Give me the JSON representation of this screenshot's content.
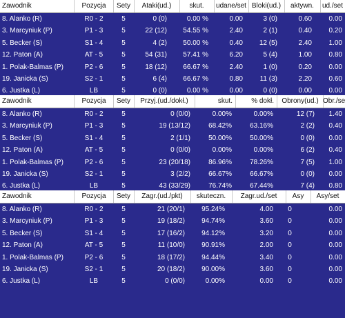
{
  "table1": {
    "headers": [
      "Zawodnik",
      "Pozycja",
      "Sety",
      "Ataki(ud.)",
      "skut.",
      "udane/set",
      "Bloki(ud.)",
      "aktywn.",
      "ud./set"
    ],
    "rows": [
      [
        "8. Alanko (R)",
        "R0 - 2",
        "5",
        "0 (0)",
        "0.00 %",
        "0.00",
        "3 (0)",
        "0.60",
        "0.00"
      ],
      [
        "3. Marcyniuk (P)",
        "P1 - 3",
        "5",
        "22 (12)",
        "54.55 %",
        "2.40",
        "2 (1)",
        "0.40",
        "0.20"
      ],
      [
        "5. Becker (S)",
        "S1 - 4",
        "5",
        "4 (2)",
        "50.00 %",
        "0.40",
        "12 (5)",
        "2.40",
        "1.00"
      ],
      [
        "12. Paton (A)",
        "AT - 5",
        "5",
        "54 (31)",
        "57.41 %",
        "6.20",
        "5 (4)",
        "1.00",
        "0.80"
      ],
      [
        "1. Polak-Balmas (P)",
        "P2 - 6",
        "5",
        "18 (12)",
        "66.67 %",
        "2.40",
        "1 (0)",
        "0.20",
        "0.00"
      ],
      [
        "19. Janicka (S)",
        "S2 - 1",
        "5",
        "6 (4)",
        "66.67 %",
        "0.80",
        "11 (3)",
        "2.20",
        "0.60"
      ],
      [
        "6. Justka (L)",
        "LB",
        "5",
        "0 (0)",
        "0.00 %",
        "0.00",
        "0 (0)",
        "0.00",
        "0.00"
      ]
    ]
  },
  "table2": {
    "headers": [
      "Zawodnik",
      "Pozycja",
      "Sety",
      "Przyj.(ud./dokł.)",
      "skut.",
      "% dokł.",
      "Obrony(ud.)",
      "Obr./set"
    ],
    "rows": [
      [
        "8. Alanko (R)",
        "R0 - 2",
        "5",
        "0 (0/0)",
        "0.00%",
        "0.00%",
        "12 (7)",
        "1.40"
      ],
      [
        "3. Marcyniuk (P)",
        "P1 - 3",
        "5",
        "19 (13/12)",
        "68.42%",
        "63.16%",
        "2 (2)",
        "0.40"
      ],
      [
        "5. Becker (S)",
        "S1 - 4",
        "5",
        "2 (1/1)",
        "50.00%",
        "50.00%",
        "0 (0)",
        "0.00"
      ],
      [
        "12. Paton (A)",
        "AT - 5",
        "5",
        "0 (0/0)",
        "0.00%",
        "0.00%",
        "6 (2)",
        "0.40"
      ],
      [
        "1. Polak-Balmas (P)",
        "P2 - 6",
        "5",
        "23 (20/18)",
        "86.96%",
        "78.26%",
        "7 (5)",
        "1.00"
      ],
      [
        "19. Janicka (S)",
        "S2 - 1",
        "5",
        "3 (2/2)",
        "66.67%",
        "66.67%",
        "0 (0)",
        "0.00"
      ],
      [
        "6. Justka (L)",
        "LB",
        "5",
        "43 (33/29)",
        "76.74%",
        "67.44%",
        "7 (4)",
        "0.80"
      ]
    ]
  },
  "table3": {
    "headers": [
      "Zawodnik",
      "Pozycja",
      "Sety",
      "Zagr.(ud./pkt)",
      "skuteczn.",
      "Zagr.ud./set",
      "Asy",
      "Asy/set"
    ],
    "rows": [
      [
        "8. Alanko (R)",
        "R0 - 2",
        "5",
        "21 (20/1)",
        "95.24%",
        "4.00",
        "0",
        "0.00"
      ],
      [
        "3. Marcyniuk (P)",
        "P1 - 3",
        "5",
        "19 (18/2)",
        "94.74%",
        "3.60",
        "0",
        "0.00"
      ],
      [
        "5. Becker (S)",
        "S1 - 4",
        "5",
        "17 (16/2)",
        "94.12%",
        "3.20",
        "0",
        "0.00"
      ],
      [
        "12. Paton (A)",
        "AT - 5",
        "5",
        "11 (10/0)",
        "90.91%",
        "2.00",
        "0",
        "0.00"
      ],
      [
        "1. Polak-Balmas (P)",
        "P2 - 6",
        "5",
        "18 (17/2)",
        "94.44%",
        "3.40",
        "0",
        "0.00"
      ],
      [
        "19. Janicka (S)",
        "S2 - 1",
        "5",
        "20 (18/2)",
        "90.00%",
        "3.60",
        "0",
        "0.00"
      ],
      [
        "6. Justka (L)",
        "LB",
        "5",
        "0 (0/0)",
        "0.00%",
        "0.00",
        "0",
        "0.00"
      ]
    ]
  },
  "colors": {
    "background": "#2a2a8c",
    "header_bg": "#ffffff",
    "text": "#ffffff"
  }
}
